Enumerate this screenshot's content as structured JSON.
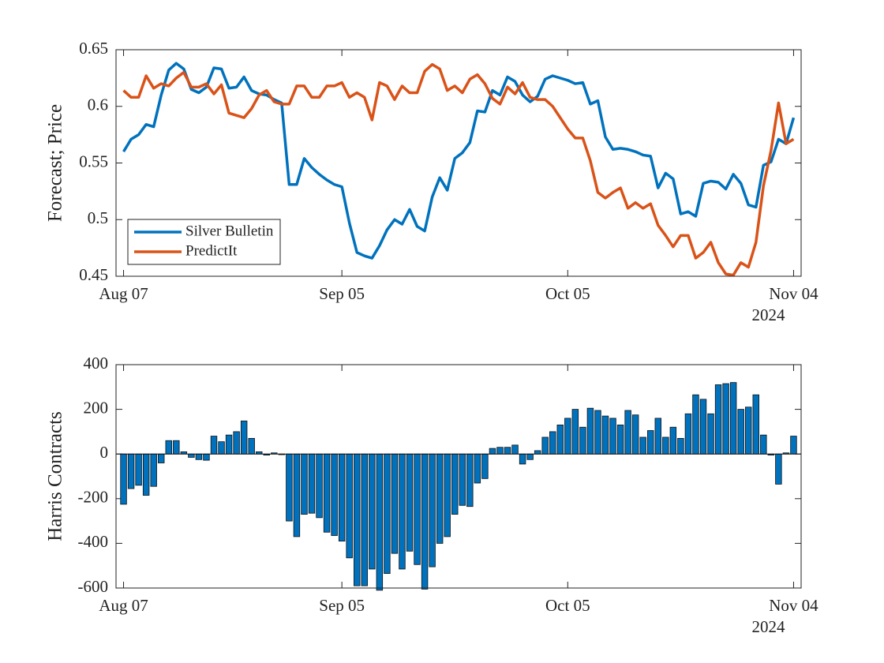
{
  "chart_data": [
    {
      "type": "line",
      "ylabel": "Forecast; Price",
      "x_year": "2024",
      "categories": [
        "Aug 07",
        null,
        null,
        null,
        null,
        null,
        null,
        null,
        null,
        null,
        null,
        null,
        null,
        null,
        null,
        null,
        null,
        null,
        null,
        null,
        null,
        null,
        null,
        null,
        null,
        null,
        null,
        null,
        null,
        "Sep 05",
        null,
        null,
        null,
        null,
        null,
        null,
        null,
        null,
        null,
        null,
        null,
        null,
        null,
        null,
        null,
        null,
        null,
        null,
        null,
        null,
        null,
        null,
        null,
        null,
        null,
        null,
        null,
        null,
        null,
        "Oct 05",
        null,
        null,
        null,
        null,
        null,
        null,
        null,
        null,
        null,
        null,
        null,
        null,
        null,
        null,
        null,
        null,
        null,
        null,
        null,
        null,
        null,
        null,
        null,
        null,
        null,
        null,
        null,
        null,
        null,
        "Nov 04"
      ],
      "series": [
        {
          "name": "Silver Bulletin",
          "color": "#0072bd",
          "values": [
            0.56,
            0.571,
            0.575,
            0.584,
            0.582,
            0.61,
            0.632,
            0.638,
            0.633,
            0.615,
            0.612,
            0.617,
            0.634,
            0.633,
            0.616,
            0.617,
            0.626,
            0.614,
            0.611,
            0.61,
            0.606,
            0.603,
            0.531,
            0.531,
            0.554,
            0.546,
            0.54,
            0.535,
            0.531,
            0.529,
            0.497,
            0.471,
            0.468,
            0.466,
            0.477,
            0.491,
            0.5,
            0.496,
            0.509,
            0.494,
            0.49,
            0.52,
            0.537,
            0.526,
            0.554,
            0.559,
            0.568,
            0.596,
            0.595,
            0.614,
            0.61,
            0.626,
            0.622,
            0.61,
            0.604,
            0.609,
            0.624,
            0.627,
            0.625,
            0.623,
            0.62,
            0.621,
            0.602,
            0.605,
            0.573,
            0.562,
            0.563,
            0.562,
            0.56,
            0.557,
            0.556,
            0.528,
            0.541,
            0.536,
            0.505,
            0.507,
            0.503,
            0.532,
            0.534,
            0.533,
            0.527,
            0.54,
            0.532,
            0.513,
            0.511,
            0.548,
            0.551,
            0.571,
            0.567,
            0.59
          ]
        },
        {
          "name": "PredictIt",
          "color": "#d95319",
          "values": [
            0.614,
            0.608,
            0.608,
            0.627,
            0.616,
            0.62,
            0.618,
            0.625,
            0.63,
            0.617,
            0.617,
            0.62,
            0.611,
            0.619,
            0.594,
            0.592,
            0.59,
            0.598,
            0.61,
            0.614,
            0.604,
            0.602,
            0.602,
            0.618,
            0.618,
            0.608,
            0.608,
            0.618,
            0.618,
            0.621,
            0.608,
            0.612,
            0.608,
            0.588,
            0.621,
            0.618,
            0.606,
            0.618,
            0.612,
            0.612,
            0.631,
            0.637,
            0.633,
            0.614,
            0.618,
            0.612,
            0.624,
            0.628,
            0.62,
            0.607,
            0.602,
            0.617,
            0.611,
            0.621,
            0.608,
            0.606,
            0.606,
            0.6,
            0.59,
            0.58,
            0.572,
            0.572,
            0.552,
            0.524,
            0.519,
            0.524,
            0.528,
            0.51,
            0.515,
            0.51,
            0.514,
            0.495,
            0.486,
            0.476,
            0.486,
            0.486,
            0.466,
            0.471,
            0.48,
            0.462,
            0.452,
            0.451,
            0.462,
            0.458,
            0.48,
            0.53,
            0.561,
            0.603,
            0.567,
            0.571
          ]
        }
      ],
      "ylim": [
        0.45,
        0.65
      ],
      "yticks": [
        0.45,
        0.5,
        0.55,
        0.6,
        0.65
      ],
      "legend": "southwest"
    },
    {
      "type": "bar",
      "ylabel": "Harris Contracts",
      "x_year": "2024",
      "categories": [
        "Aug 07",
        null,
        null,
        null,
        null,
        null,
        null,
        null,
        null,
        null,
        null,
        null,
        null,
        null,
        null,
        null,
        null,
        null,
        null,
        null,
        null,
        null,
        null,
        null,
        null,
        null,
        null,
        null,
        null,
        "Sep 05",
        null,
        null,
        null,
        null,
        null,
        null,
        null,
        null,
        null,
        null,
        null,
        null,
        null,
        null,
        null,
        null,
        null,
        null,
        null,
        null,
        null,
        null,
        null,
        null,
        null,
        null,
        null,
        null,
        null,
        "Oct 05",
        null,
        null,
        null,
        null,
        null,
        null,
        null,
        null,
        null,
        null,
        null,
        null,
        null,
        null,
        null,
        null,
        null,
        null,
        null,
        null,
        null,
        null,
        null,
        null,
        null,
        null,
        null,
        null,
        null,
        "Nov 04"
      ],
      "values": [
        -225,
        -155,
        -140,
        -185,
        -145,
        -40,
        60,
        60,
        10,
        -15,
        -25,
        -28,
        80,
        55,
        85,
        100,
        148,
        70,
        10,
        -5,
        5,
        -3,
        -300,
        -370,
        -270,
        -265,
        -285,
        -350,
        -365,
        -390,
        -465,
        -590,
        -590,
        -515,
        -610,
        -535,
        -445,
        -515,
        -435,
        -495,
        -605,
        -505,
        -400,
        -370,
        -270,
        -230,
        -235,
        -130,
        -110,
        25,
        30,
        30,
        40,
        -45,
        -25,
        15,
        75,
        100,
        130,
        160,
        200,
        120,
        205,
        195,
        170,
        160,
        130,
        195,
        175,
        75,
        105,
        160,
        75,
        120,
        70,
        180,
        265,
        245,
        180,
        310,
        315,
        320,
        200,
        210,
        265,
        85,
        -5,
        -135,
        5,
        80
      ],
      "color": "#0072bd",
      "ylim": [
        -600,
        400
      ],
      "yticks": [
        -600,
        -400,
        -200,
        0,
        200,
        400
      ]
    }
  ]
}
